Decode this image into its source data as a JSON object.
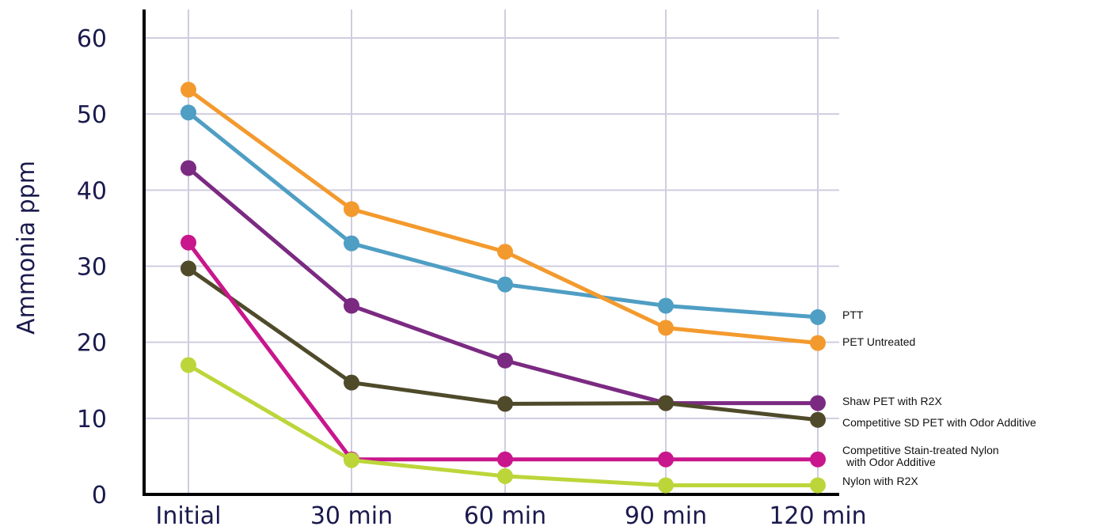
{
  "chart_data": {
    "type": "line",
    "title": "",
    "xlabel": "",
    "ylabel": "Ammonia ppm",
    "categories": [
      "Initial",
      "30 min",
      "60 min",
      "90 min",
      "120 min"
    ],
    "y_ticks": [
      "0",
      "10",
      "20",
      "30",
      "40",
      "50",
      "60"
    ],
    "ylim": [
      0,
      60
    ],
    "grid": true,
    "legend_placement": "right, at line ends",
    "series": [
      {
        "name": "PTT",
        "color": "#4f9ec4",
        "values": [
          50.2,
          33.0,
          27.6,
          24.8,
          23.3
        ]
      },
      {
        "name": "PET Untreated",
        "color": "#f39a2e",
        "values": [
          53.2,
          37.5,
          31.9,
          21.9,
          19.9
        ]
      },
      {
        "name": "Shaw PET with R2X",
        "color": "#7b2a82",
        "values": [
          42.9,
          24.8,
          17.6,
          12.0,
          12.0
        ]
      },
      {
        "name": "Competitive SD PET with Odor Additive",
        "color": "#4f4a2a",
        "values": [
          29.7,
          14.7,
          11.9,
          12.0,
          9.8
        ]
      },
      {
        "name": "Competitive Stain-treated Nylon with Odor Additive",
        "label_lines": [
          "Competitive Stain-treated Nylon",
          "with Odor Additive"
        ],
        "color": "#c9168c",
        "values": [
          33.1,
          4.6,
          4.6,
          4.6,
          4.6
        ]
      },
      {
        "name": "Nylon with R2X",
        "color": "#bcd63a",
        "values": [
          17.0,
          4.5,
          2.4,
          1.2,
          1.2
        ]
      }
    ]
  }
}
